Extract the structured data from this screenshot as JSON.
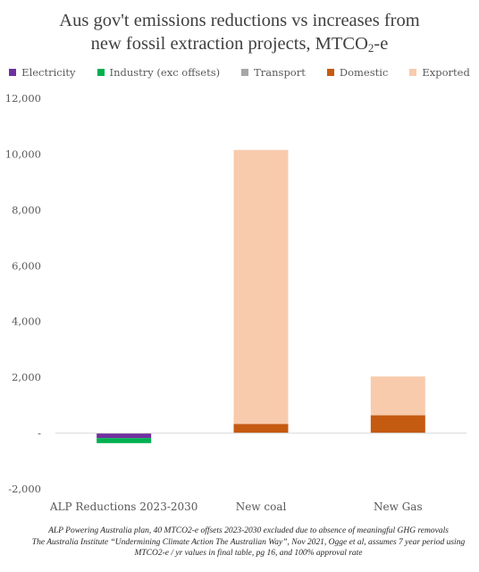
{
  "chart_data": {
    "type": "bar",
    "stacked": true,
    "title_line1": "Aus gov't emissions reductions vs increases from",
    "title_line2_prefix": "new fossil extraction projects, MTCO",
    "title_line2_sub": "2",
    "title_line2_suffix": "-e",
    "categories": [
      "ALP Reductions 2023-2030",
      "New coal",
      "New Gas"
    ],
    "series": [
      {
        "name": "Electricity",
        "color": "#7030a0",
        "values": [
          -180,
          0,
          0
        ]
      },
      {
        "name": "Industry (exc offsets)",
        "color": "#00b050",
        "values": [
          -180,
          0,
          0
        ]
      },
      {
        "name": "Transport",
        "color": "#a6a6a6",
        "values": [
          0,
          0,
          0
        ]
      },
      {
        "name": "Domestic",
        "color": "#c55a11",
        "values": [
          0,
          330,
          640
        ]
      },
      {
        "name": "Exported",
        "color": "#f8cbad",
        "values": [
          0,
          9820,
          1390
        ]
      }
    ],
    "ylim": [
      -2000,
      12000
    ],
    "yticks": [
      -2000,
      0,
      2000,
      4000,
      6000,
      8000,
      10000,
      12000
    ],
    "ytick_labels": [
      "-2,000",
      "-",
      "2,000",
      "4,000",
      "6,000",
      "8,000",
      "10,000",
      "12,000"
    ],
    "grid": false,
    "legend_position": "top"
  },
  "footnote": {
    "line1": "ALP Powering Australia plan, 40 MTCO2-e offsets 2023-2030 excluded due to absence of meaningful GHG removals",
    "line2": "The Australia Institute “Undermining Climate Action The Australian Way”, Nov 2021, Ogge et al, assumes 7 year period using",
    "line3": "MTCO2-e / yr values in final table, pg 16, and 100% approval rate"
  }
}
